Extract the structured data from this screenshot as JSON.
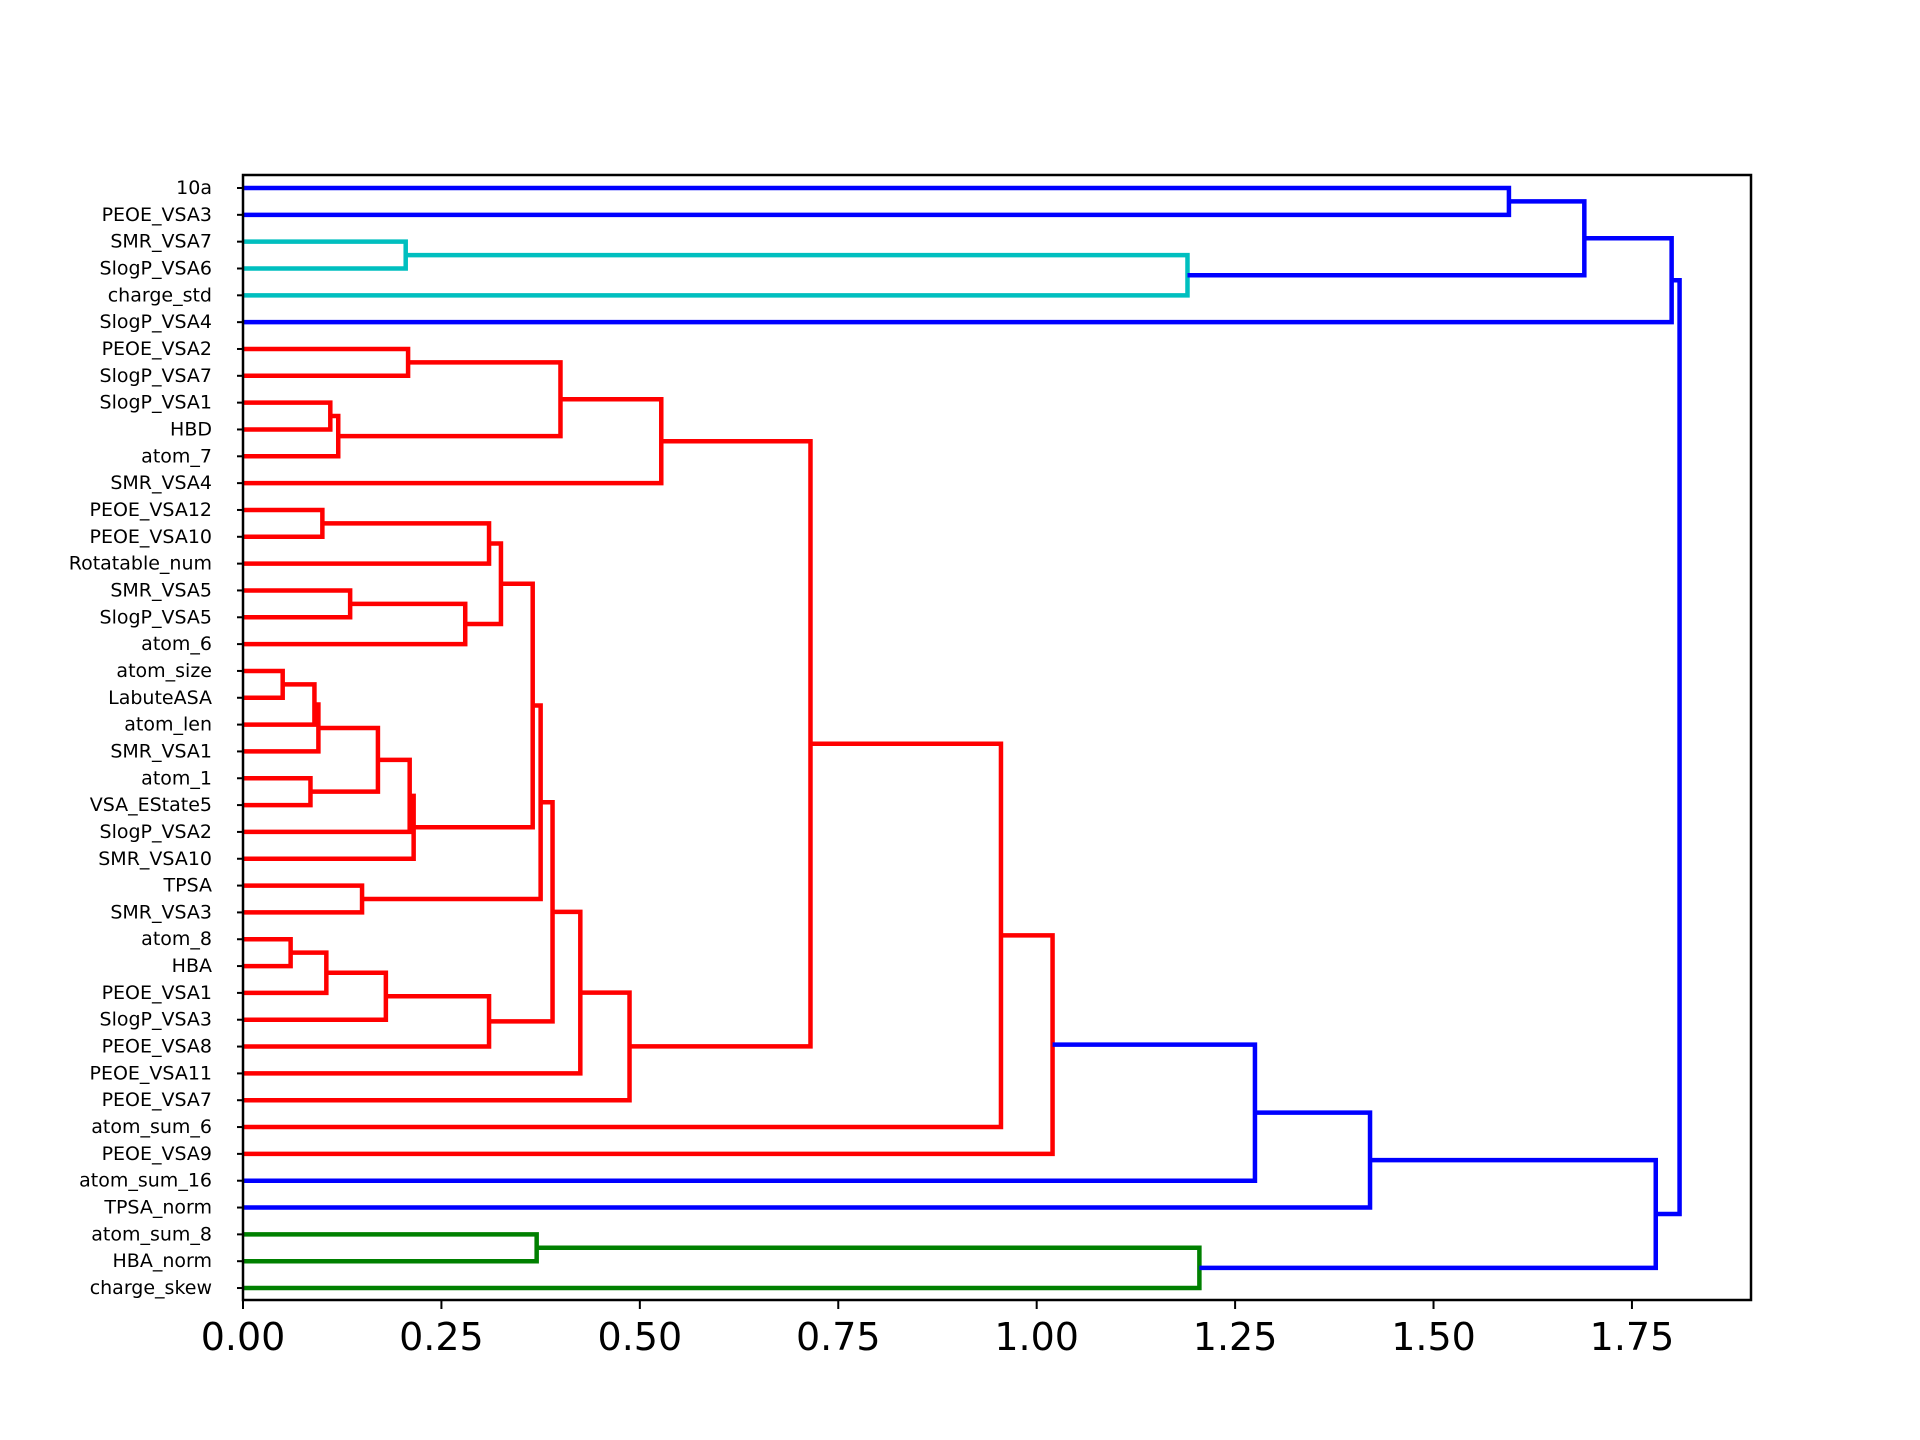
{
  "chart_data": {
    "type": "dendrogram",
    "orientation": "horizontal",
    "title": "",
    "xlabel": "",
    "ylabel": "",
    "xlim": [
      0,
      1.9
    ],
    "xticks": [
      "0.00",
      "0.25",
      "0.50",
      "0.75",
      "1.00",
      "1.25",
      "1.50",
      "1.75"
    ],
    "leaves": [
      "10a",
      "PEOE_VSA3",
      "SMR_VSA7",
      "SlogP_VSA6",
      "charge_std",
      "SlogP_VSA4",
      "PEOE_VSA2",
      "SlogP_VSA7",
      "SlogP_VSA1",
      "HBD",
      "atom_7",
      "SMR_VSA4",
      "PEOE_VSA12",
      "PEOE_VSA10",
      "Rotatable_num",
      "SMR_VSA5",
      "SlogP_VSA5",
      "atom_6",
      "atom_size",
      "LabuteASA",
      "atom_len",
      "SMR_VSA1",
      "atom_1",
      "VSA_EState5",
      "SlogP_VSA2",
      "SMR_VSA10",
      "TPSA",
      "SMR_VSA3",
      "atom_8",
      "HBA",
      "PEOE_VSA1",
      "SlogP_VSA3",
      "PEOE_VSA8",
      "PEOE_VSA11",
      "PEOE_VSA7",
      "atom_sum_6",
      "PEOE_VSA9",
      "atom_sum_16",
      "TPSA_norm",
      "atom_sum_8",
      "HBA_norm",
      "charge_skew"
    ],
    "colors": {
      "red": "#ff0000",
      "blue": "#0000ff",
      "cyan": "#00bfbf",
      "green": "#008000"
    },
    "merges": [
      {
        "id": "c01",
        "a": "10a",
        "b": "PEOE_VSA3",
        "height": 1.595,
        "color": "blue"
      },
      {
        "id": "c02",
        "a": "SMR_VSA7",
        "b": "SlogP_VSA6",
        "height": 0.205,
        "color": "cyan"
      },
      {
        "id": "c03",
        "a": "c02",
        "b": "charge_std",
        "height": 1.19,
        "color": "cyan"
      },
      {
        "id": "c04",
        "a": "c01",
        "b": "c03",
        "height": 1.69,
        "color": "blue"
      },
      {
        "id": "c05",
        "a": "c04",
        "b": "SlogP_VSA4",
        "height": 1.8,
        "color": "blue"
      },
      {
        "id": "c06",
        "a": "PEOE_VSA2",
        "b": "SlogP_VSA7",
        "height": 0.208,
        "color": "red"
      },
      {
        "id": "c07",
        "a": "SlogP_VSA1",
        "b": "HBD",
        "height": 0.11,
        "color": "red"
      },
      {
        "id": "c08",
        "a": "c07",
        "b": "atom_7",
        "height": 0.12,
        "color": "red"
      },
      {
        "id": "c09",
        "a": "c06",
        "b": "c08",
        "height": 0.4,
        "color": "red"
      },
      {
        "id": "c10",
        "a": "c09",
        "b": "SMR_VSA4",
        "height": 0.527,
        "color": "red"
      },
      {
        "id": "c11",
        "a": "PEOE_VSA12",
        "b": "PEOE_VSA10",
        "height": 0.1,
        "color": "red"
      },
      {
        "id": "c12",
        "a": "c11",
        "b": "Rotatable_num",
        "height": 0.31,
        "color": "red"
      },
      {
        "id": "c13",
        "a": "SMR_VSA5",
        "b": "SlogP_VSA5",
        "height": 0.135,
        "color": "red"
      },
      {
        "id": "c14",
        "a": "c13",
        "b": "atom_6",
        "height": 0.28,
        "color": "red"
      },
      {
        "id": "c15",
        "a": "c12",
        "b": "c14",
        "height": 0.325,
        "color": "red"
      },
      {
        "id": "c16",
        "a": "atom_size",
        "b": "LabuteASA",
        "height": 0.05,
        "color": "red"
      },
      {
        "id": "c17",
        "a": "c16",
        "b": "atom_len",
        "height": 0.09,
        "color": "red"
      },
      {
        "id": "c18",
        "a": "c17",
        "b": "SMR_VSA1",
        "height": 0.095,
        "color": "red"
      },
      {
        "id": "c19",
        "a": "atom_1",
        "b": "VSA_EState5",
        "height": 0.085,
        "color": "red"
      },
      {
        "id": "c20",
        "a": "c18",
        "b": "c19",
        "height": 0.17,
        "color": "red"
      },
      {
        "id": "c21",
        "a": "c20",
        "b": "SlogP_VSA2",
        "height": 0.21,
        "color": "red"
      },
      {
        "id": "c22",
        "a": "c21",
        "b": "SMR_VSA10",
        "height": 0.215,
        "color": "red"
      },
      {
        "id": "c23",
        "a": "c15",
        "b": "c22",
        "height": 0.365,
        "color": "red"
      },
      {
        "id": "c24",
        "a": "TPSA",
        "b": "SMR_VSA3",
        "height": 0.15,
        "color": "red"
      },
      {
        "id": "c25",
        "a": "c23",
        "b": "c24",
        "height": 0.375,
        "color": "red"
      },
      {
        "id": "c26",
        "a": "atom_8",
        "b": "HBA",
        "height": 0.06,
        "color": "red"
      },
      {
        "id": "c27",
        "a": "c26",
        "b": "PEOE_VSA1",
        "height": 0.105,
        "color": "red"
      },
      {
        "id": "c28",
        "a": "c27",
        "b": "SlogP_VSA3",
        "height": 0.18,
        "color": "red"
      },
      {
        "id": "c29",
        "a": "c28",
        "b": "PEOE_VSA8",
        "height": 0.31,
        "color": "red"
      },
      {
        "id": "c30",
        "a": "c25",
        "b": "c29",
        "height": 0.39,
        "color": "red"
      },
      {
        "id": "c31",
        "a": "c30",
        "b": "PEOE_VSA11",
        "height": 0.425,
        "color": "red"
      },
      {
        "id": "c32",
        "a": "c31",
        "b": "PEOE_VSA7",
        "height": 0.487,
        "color": "red"
      },
      {
        "id": "c33",
        "a": "c10",
        "b": "c32",
        "height": 0.715,
        "color": "red"
      },
      {
        "id": "c34",
        "a": "c33",
        "b": "atom_sum_6",
        "height": 0.955,
        "color": "red"
      },
      {
        "id": "c35",
        "a": "c34",
        "b": "PEOE_VSA9",
        "height": 1.02,
        "color": "red"
      },
      {
        "id": "c36",
        "a": "c35",
        "b": "atom_sum_16",
        "height": 1.275,
        "color": "blue"
      },
      {
        "id": "c37",
        "a": "c36",
        "b": "TPSA_norm",
        "height": 1.42,
        "color": "blue"
      },
      {
        "id": "c38",
        "a": "atom_sum_8",
        "b": "HBA_norm",
        "height": 0.37,
        "color": "green"
      },
      {
        "id": "c39",
        "a": "c38",
        "b": "charge_skew",
        "height": 1.205,
        "color": "green"
      },
      {
        "id": "c40",
        "a": "c37",
        "b": "c39",
        "height": 1.78,
        "color": "blue"
      },
      {
        "id": "c41",
        "a": "c05",
        "b": "c40",
        "height": 1.81,
        "color": "blue"
      }
    ]
  }
}
